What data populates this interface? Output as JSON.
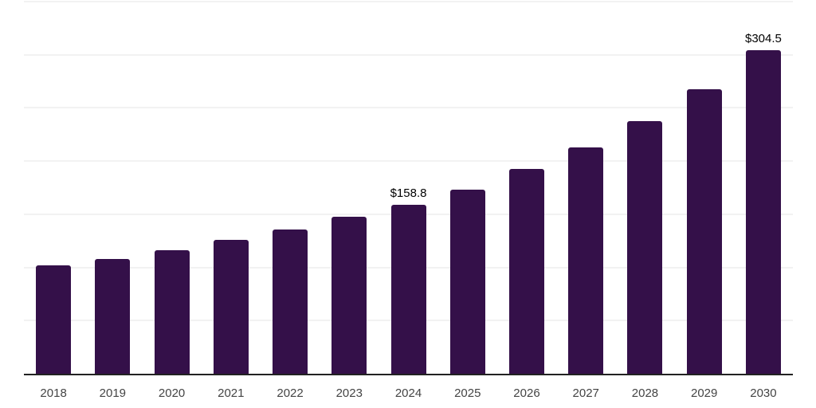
{
  "chart_data": {
    "type": "bar",
    "title": "",
    "xlabel": "",
    "ylabel": "",
    "categories": [
      "2018",
      "2019",
      "2020",
      "2021",
      "2022",
      "2023",
      "2024",
      "2025",
      "2026",
      "2027",
      "2028",
      "2029",
      "2030"
    ],
    "values": [
      101.7,
      108.3,
      116.5,
      125.6,
      135.6,
      147.7,
      158.8,
      173.4,
      192.4,
      213.0,
      237.3,
      267.9,
      304.5
    ],
    "data_labels": [
      {
        "category": "2024",
        "text": "$158.8"
      },
      {
        "category": "2030",
        "text": "$304.5"
      }
    ],
    "ylim": [
      0,
      350
    ],
    "gridline_step": 50,
    "grid": "horizontal-only",
    "y_tick_labels_visible": false,
    "legend": "none",
    "colors": {
      "bar": "#341049",
      "gridline": "#f2f2f2",
      "axis_line": "#222222",
      "tick_label": "#444444",
      "data_label": "#000000",
      "background": "#ffffff"
    }
  }
}
